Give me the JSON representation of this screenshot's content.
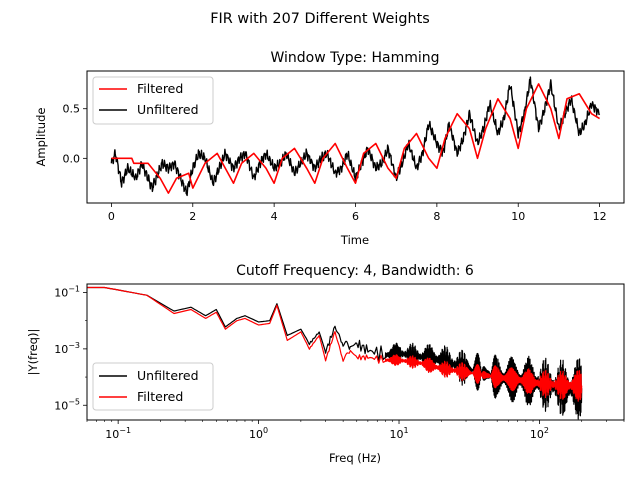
{
  "figure": {
    "suptitle": "FIR with 207 Different Weights"
  },
  "chart_data": [
    {
      "type": "line",
      "title": "Window Type: Hamming",
      "xlabel": "Time",
      "ylabel": "Amplitude",
      "xlim": [
        -0.6,
        12.6
      ],
      "ylim": [
        -0.45,
        0.88
      ],
      "xticks": [
        0,
        2,
        4,
        6,
        8,
        10,
        12
      ],
      "yticks": [
        0.0,
        0.5
      ],
      "legend": {
        "position": "upper-left",
        "entries": [
          "Filtered",
          "Unfiltered"
        ]
      },
      "series": [
        {
          "name": "Unfiltered",
          "color": "#000000",
          "x": [
            0,
            0.1,
            0.25,
            0.4,
            0.6,
            0.75,
            0.9,
            1.0,
            1.1,
            1.25,
            1.4,
            1.55,
            1.7,
            1.85,
            2.0,
            2.15,
            2.3,
            2.5,
            2.65,
            2.8,
            3.0,
            3.15,
            3.3,
            3.5,
            3.65,
            3.8,
            4.0,
            4.15,
            4.3,
            4.5,
            4.65,
            4.8,
            5.0,
            5.15,
            5.3,
            5.5,
            5.65,
            5.8,
            6.0,
            6.15,
            6.3,
            6.5,
            6.65,
            6.8,
            7.0,
            7.15,
            7.3,
            7.5,
            7.65,
            7.8,
            8.0,
            8.15,
            8.3,
            8.5,
            8.65,
            8.8,
            9.0,
            9.15,
            9.3,
            9.5,
            9.65,
            9.8,
            10.0,
            10.15,
            10.3,
            10.5,
            10.65,
            10.8,
            11.0,
            11.15,
            11.3,
            11.5,
            11.65,
            11.8,
            12.0
          ],
          "y": [
            -0.05,
            0.05,
            -0.25,
            -0.1,
            -0.2,
            -0.05,
            -0.2,
            -0.3,
            -0.2,
            -0.05,
            -0.1,
            -0.05,
            -0.2,
            -0.35,
            -0.1,
            0.05,
            0.0,
            -0.25,
            -0.1,
            0.05,
            -0.1,
            0.0,
            0.05,
            -0.2,
            -0.05,
            0.05,
            -0.1,
            -0.05,
            0.05,
            -0.15,
            -0.05,
            0.05,
            -0.1,
            0.0,
            0.05,
            -0.15,
            -0.1,
            0.05,
            -0.2,
            -0.05,
            0.1,
            -0.1,
            -0.05,
            0.1,
            -0.2,
            -0.05,
            0.15,
            -0.1,
            0.05,
            0.35,
            0.15,
            0.05,
            0.35,
            0.05,
            0.2,
            0.45,
            0.15,
            0.3,
            0.55,
            0.25,
            0.4,
            0.75,
            0.25,
            0.45,
            0.8,
            0.3,
            0.5,
            0.75,
            0.3,
            0.45,
            0.6,
            0.25,
            0.35,
            0.55,
            0.45
          ]
        },
        {
          "name": "Filtered",
          "color": "#ff0000",
          "x": [
            0,
            0.5,
            0.55,
            0.9,
            1.2,
            1.4,
            1.6,
            1.9,
            2.0,
            2.3,
            2.6,
            2.8,
            3.0,
            3.2,
            3.5,
            3.8,
            4.0,
            4.2,
            4.5,
            4.8,
            5.0,
            5.2,
            5.5,
            5.8,
            6.0,
            6.2,
            6.5,
            6.8,
            7.0,
            7.2,
            7.5,
            7.8,
            8.0,
            8.2,
            8.5,
            8.8,
            9.0,
            9.2,
            9.5,
            9.8,
            10.0,
            10.2,
            10.5,
            10.8,
            11.0,
            11.2,
            11.5,
            11.8,
            12.0
          ],
          "y": [
            0.0,
            0.0,
            -0.05,
            -0.05,
            -0.2,
            -0.35,
            -0.2,
            -0.15,
            -0.3,
            -0.05,
            0.05,
            -0.1,
            -0.25,
            -0.05,
            0.05,
            -0.1,
            -0.25,
            0.0,
            0.1,
            -0.1,
            -0.25,
            0.0,
            0.15,
            -0.1,
            -0.25,
            0.05,
            0.15,
            -0.1,
            -0.2,
            0.1,
            0.25,
            0.0,
            -0.1,
            0.2,
            0.45,
            0.3,
            0.0,
            0.3,
            0.6,
            0.4,
            0.1,
            0.5,
            0.75,
            0.5,
            0.2,
            0.6,
            0.65,
            0.45,
            0.4
          ]
        }
      ]
    },
    {
      "type": "line",
      "title": "Cutoff Frequency: 4, Bandwidth: 6",
      "xlabel": "Freq (Hz)",
      "ylabel": "|Y(freq)|",
      "xscale": "log",
      "yscale": "log",
      "xlim": [
        0.06,
        400
      ],
      "ylim": [
        3e-06,
        0.2
      ],
      "xticks": [
        "10^-1",
        "10^0",
        "10^1",
        "10^2"
      ],
      "yticks": [
        "10^-1",
        "10^-3",
        "10^-5"
      ],
      "legend": {
        "position": "lower-left",
        "entries": [
          "Unfiltered",
          "Filtered"
        ]
      },
      "series": [
        {
          "name": "Unfiltered",
          "color": "#000000",
          "x": [
            0.06,
            0.08,
            0.16,
            0.25,
            0.33,
            0.42,
            0.5,
            0.58,
            0.7,
            0.8,
            1.0,
            1.2,
            1.35,
            1.6,
            2.0,
            2.3,
            2.7,
            3.0,
            3.5,
            4.0,
            4.5,
            5.0,
            6.0,
            8.0,
            10,
            15,
            20,
            30,
            50,
            70,
            100,
            150,
            200
          ],
          "y": [
            0.15,
            0.15,
            0.08,
            0.022,
            0.03,
            0.015,
            0.025,
            0.006,
            0.012,
            0.015,
            0.009,
            0.01,
            0.04,
            0.003,
            0.005,
            0.0015,
            0.004,
            0.0008,
            0.006,
            0.0015,
            0.001,
            0.0015,
            0.0009,
            0.0006,
            0.0007,
            0.0005,
            0.0004,
            0.0002,
            0.0001,
            8e-05,
            6e-05,
            4e-05,
            4e-05
          ]
        },
        {
          "name": "Filtered",
          "color": "#ff0000",
          "x": [
            0.06,
            0.08,
            0.16,
            0.25,
            0.33,
            0.42,
            0.5,
            0.58,
            0.7,
            0.8,
            1.0,
            1.2,
            1.35,
            1.6,
            2.0,
            2.3,
            2.7,
            3.0,
            3.5,
            4.0,
            4.5,
            5.0,
            6.0,
            8.0,
            10,
            15,
            20,
            30,
            50,
            70,
            100,
            150,
            200
          ],
          "y": [
            0.15,
            0.15,
            0.08,
            0.018,
            0.025,
            0.012,
            0.02,
            0.005,
            0.01,
            0.012,
            0.007,
            0.008,
            0.035,
            0.002,
            0.004,
            0.001,
            0.003,
            0.0004,
            0.004,
            0.0004,
            0.0008,
            0.0005,
            0.0005,
            0.0004,
            0.0004,
            0.0003,
            0.0002,
            0.00015,
            0.0001,
            8e-05,
            6e-05,
            5e-05,
            5e-05
          ]
        }
      ]
    }
  ]
}
